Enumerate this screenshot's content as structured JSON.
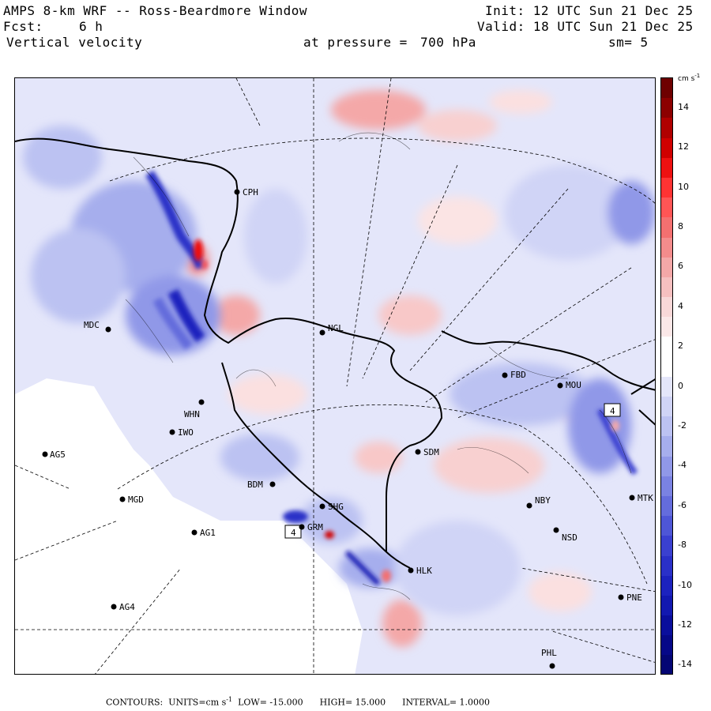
{
  "header": {
    "title": "AMPS 8-km WRF -- Ross-Beardmore Window",
    "forecast_label": "Fcst:",
    "forecast_value": "6 h",
    "field": "Vertical velocity",
    "pressure_label": "at pressure =",
    "pressure_value": "700 hPa",
    "smoothing": "sm= 5",
    "init": "Init: 12 UTC Sun 21 Dec 25",
    "valid": "Valid: 18 UTC Sun 21 Dec 25"
  },
  "colorbar": {
    "units": "cm s",
    "units_exp": "-1",
    "labels": [
      "14",
      "12",
      "10",
      "8",
      "6",
      "4",
      "2",
      "0",
      "-2",
      "-4",
      "-6",
      "-8",
      "-10",
      "-12",
      "-14"
    ],
    "colors_top_to_bottom": [
      "#6e0000",
      "#8c0000",
      "#b00000",
      "#d00000",
      "#ee1111",
      "#ff3333",
      "#ff5555",
      "#f47070",
      "#f48c8c",
      "#f4a8a8",
      "#f6c0c0",
      "#f8d8d8",
      "#fbe8e8",
      "#ffffff",
      "#ffffff",
      "#e4e6fa",
      "#d0d4f6",
      "#bcc2f2",
      "#a6aeed",
      "#9098e8",
      "#7a82e2",
      "#646cdc",
      "#4e56d6",
      "#3a40d0",
      "#2a30c8",
      "#1c22be",
      "#1218b0",
      "#0a0e9c",
      "#060888",
      "#040674"
    ]
  },
  "stations": [
    {
      "code": "CPH"
    },
    {
      "code": "MDC"
    },
    {
      "code": "NGL"
    },
    {
      "code": "FBD"
    },
    {
      "code": "MOU"
    },
    {
      "code": "WHN"
    },
    {
      "code": "IWO"
    },
    {
      "code": "AG5"
    },
    {
      "code": "SDM"
    },
    {
      "code": "BDM"
    },
    {
      "code": "MGD"
    },
    {
      "code": "SHG"
    },
    {
      "code": "GRM"
    },
    {
      "code": "AG1"
    },
    {
      "code": "NBY"
    },
    {
      "code": "MTK"
    },
    {
      "code": "NSD"
    },
    {
      "code": "HLK"
    },
    {
      "code": "AG4"
    },
    {
      "code": "PNE"
    },
    {
      "code": "PHL"
    }
  ],
  "boxed_labels": [
    "4",
    "4"
  ],
  "footer": {
    "contours_label": "CONTOURS:",
    "units_label": "UNITS=cm s",
    "units_exp": "-1",
    "low": "LOW= -15.000",
    "high": "HIGH= 15.000",
    "interval": "INTERVAL= 1.0000"
  }
}
